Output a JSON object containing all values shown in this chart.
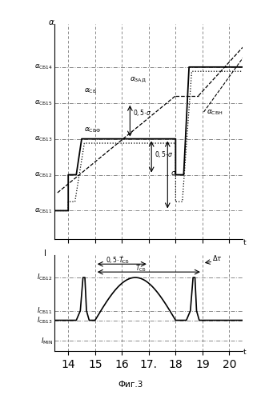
{
  "fig_title": "Фиг.3",
  "top_levels": {
    "sb11": 1.0,
    "sb12": 2.0,
    "sb13": 3.0,
    "sb15": 4.0,
    "sb14": 5.0
  },
  "bot_levels": {
    "imin": 0.5,
    "sb13": 1.8,
    "sb11": 2.4,
    "sb12": 4.5
  },
  "t_ticks": [
    14,
    15,
    16,
    17,
    18,
    19,
    20
  ],
  "dash_color": "#777777",
  "line_color": "#000000",
  "fs": 6.5
}
